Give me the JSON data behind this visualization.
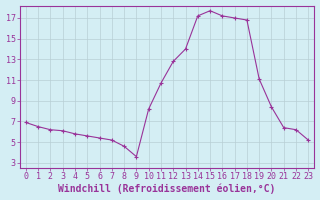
{
  "x": [
    0,
    1,
    2,
    3,
    4,
    5,
    6,
    7,
    8,
    9,
    10,
    11,
    12,
    13,
    14,
    15,
    16,
    17,
    18,
    19,
    20,
    21,
    22,
    23
  ],
  "y": [
    6.9,
    6.5,
    6.2,
    6.1,
    5.8,
    5.6,
    5.4,
    5.2,
    4.6,
    3.6,
    8.2,
    10.7,
    12.8,
    14.0,
    17.2,
    17.7,
    17.2,
    17.0,
    16.8,
    11.1,
    8.4,
    6.4,
    6.2,
    5.2
  ],
  "line_color": "#993399",
  "marker": "+",
  "marker_size": 3,
  "marker_linewidth": 0.8,
  "xlabel": "Windchill (Refroidissement éolien,°C)",
  "ylabel": "",
  "title": "",
  "xlim": [
    -0.5,
    23.5
  ],
  "ylim": [
    2.5,
    18.2
  ],
  "yticks": [
    3,
    5,
    7,
    9,
    11,
    13,
    15,
    17
  ],
  "xticks": [
    0,
    1,
    2,
    3,
    4,
    5,
    6,
    7,
    8,
    9,
    10,
    11,
    12,
    13,
    14,
    15,
    16,
    17,
    18,
    19,
    20,
    21,
    22,
    23
  ],
  "bg_color": "#d4eef4",
  "grid_color": "#b8cfd5",
  "label_color": "#993399",
  "tick_label_color": "#993399",
  "axis_color": "#993399",
  "tick_fontsize": 6.0,
  "xlabel_fontsize": 7.0
}
